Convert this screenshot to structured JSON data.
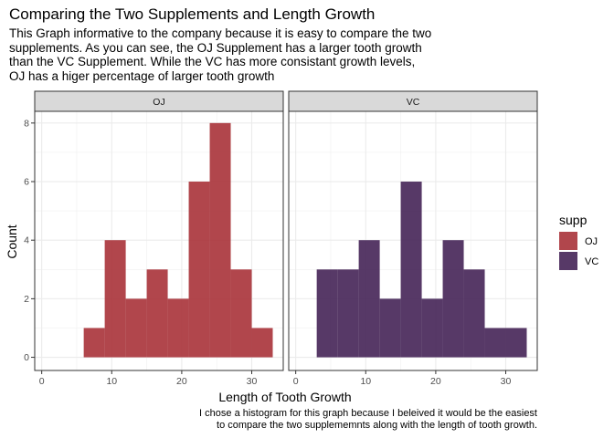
{
  "title": "Comparing the Two Supplements and Length Growth",
  "subtitle_lines": [
    "This Graph informative to the company because it is easy to compare the two",
    "supplements. As you can see, the OJ Supplement has a larger tooth growth",
    "than the VC Supplement. While the VC has more consistant growth levels,",
    "OJ has a higer percentage of larger tooth growth"
  ],
  "caption_lines": [
    "I chose a histogram for this graph because I beleived it would be the easiest",
    "to compare the two supplememnts along with the length of tooth growth."
  ],
  "chart_data": {
    "type": "bar",
    "subtype": "faceted histogram",
    "xlabel": "Length of Tooth Growth",
    "ylabel": "Count",
    "xlim": [
      -1,
      34.5
    ],
    "ylim": [
      -0.45,
      8.4
    ],
    "x_ticks": [
      0,
      10,
      20,
      30
    ],
    "y_ticks": [
      0,
      2,
      4,
      6,
      8
    ],
    "bin_width": 3,
    "grid": true,
    "legend": {
      "title": "supp",
      "placement": "right",
      "entries": [
        {
          "label": "OJ",
          "color": "#a83238"
        },
        {
          "label": "VC",
          "color": "#452456"
        }
      ]
    },
    "panels": [
      {
        "label": "OJ",
        "color": "#a83238",
        "bins": [
          {
            "x0": 6,
            "x1": 9,
            "count": 1
          },
          {
            "x0": 9,
            "x1": 12,
            "count": 4
          },
          {
            "x0": 12,
            "x1": 15,
            "count": 2
          },
          {
            "x0": 15,
            "x1": 18,
            "count": 3
          },
          {
            "x0": 18,
            "x1": 21,
            "count": 2
          },
          {
            "x0": 21,
            "x1": 24,
            "count": 6
          },
          {
            "x0": 24,
            "x1": 27,
            "count": 8
          },
          {
            "x0": 27,
            "x1": 30,
            "count": 3
          },
          {
            "x0": 30,
            "x1": 33,
            "count": 1
          }
        ]
      },
      {
        "label": "VC",
        "color": "#452456",
        "bins": [
          {
            "x0": 3,
            "x1": 6,
            "count": 3
          },
          {
            "x0": 6,
            "x1": 9,
            "count": 3
          },
          {
            "x0": 9,
            "x1": 12,
            "count": 4
          },
          {
            "x0": 12,
            "x1": 15,
            "count": 2
          },
          {
            "x0": 15,
            "x1": 18,
            "count": 6
          },
          {
            "x0": 18,
            "x1": 21,
            "count": 2
          },
          {
            "x0": 21,
            "x1": 24,
            "count": 4
          },
          {
            "x0": 24,
            "x1": 27,
            "count": 3
          },
          {
            "x0": 27,
            "x1": 30,
            "count": 1
          },
          {
            "x0": 30,
            "x1": 33,
            "count": 1
          }
        ]
      }
    ]
  }
}
